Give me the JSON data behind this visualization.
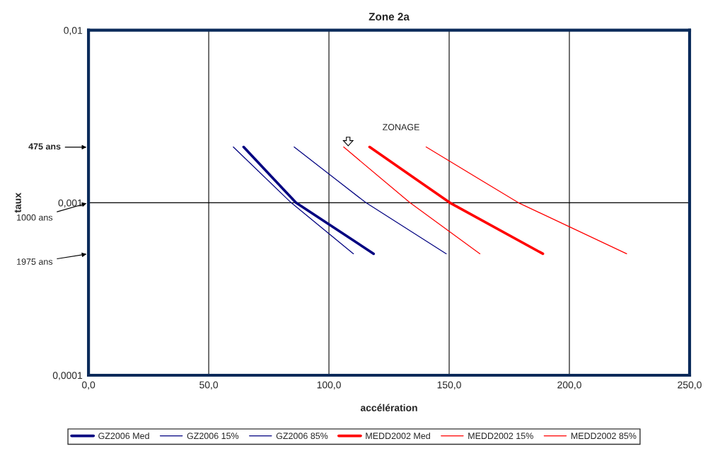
{
  "chart_data": {
    "type": "line",
    "title": "Zone 2a",
    "xlabel": "accélération",
    "ylabel": "taux",
    "xlim": [
      0,
      250
    ],
    "xticks": [
      {
        "value": 0,
        "label": "0,0"
      },
      {
        "value": 50,
        "label": "50,0"
      },
      {
        "value": 100,
        "label": "100,0"
      },
      {
        "value": 150,
        "label": "150,0"
      },
      {
        "value": 200,
        "label": "200,0"
      },
      {
        "value": 250,
        "label": "250,0"
      }
    ],
    "ylim": [
      0.0001,
      0.01
    ],
    "yticks": [
      {
        "value": 0.0001,
        "label": "0,0001"
      },
      {
        "value": 0.001,
        "label": "0,001"
      },
      {
        "value": 0.01,
        "label": "0,01"
      }
    ],
    "log": "y",
    "grid": true,
    "legend": "bottom",
    "marker": "none",
    "line_style": "solid",
    "series": [
      {
        "name": "GZ2006 Med",
        "color": "#000080",
        "x": [
          64.5,
          86.3,
          118.6
        ],
        "values": [
          0.002105,
          0.001,
          0.000506
        ]
      },
      {
        "name": "GZ2006 15%",
        "color": "#000080",
        "x": [
          60.2,
          84.3,
          110.2
        ],
        "values": [
          0.002105,
          0.001,
          0.000506
        ]
      },
      {
        "name": "GZ2006 85%",
        "color": "#000080",
        "x": [
          85.5,
          115.4,
          148.8
        ],
        "values": [
          0.002105,
          0.001,
          0.000506
        ]
      },
      {
        "name": "MEDD2002 Med",
        "color": "#ff0000",
        "x": [
          116.9,
          150.3,
          189.0
        ],
        "values": [
          0.002105,
          0.001,
          0.000506
        ]
      },
      {
        "name": "MEDD2002 15%",
        "color": "#ff0000",
        "x": [
          106.1,
          133.7,
          162.8
        ],
        "values": [
          0.002105,
          0.001,
          0.000506
        ]
      },
      {
        "name": "MEDD2002 85%",
        "color": "#ff0000",
        "x": [
          140.4,
          178.8,
          223.8
        ],
        "values": [
          0.002105,
          0.001,
          0.000506
        ]
      }
    ],
    "annotations": [
      "475 ans",
      "1000 ans",
      "1975 ans",
      "ZONAGE"
    ]
  }
}
